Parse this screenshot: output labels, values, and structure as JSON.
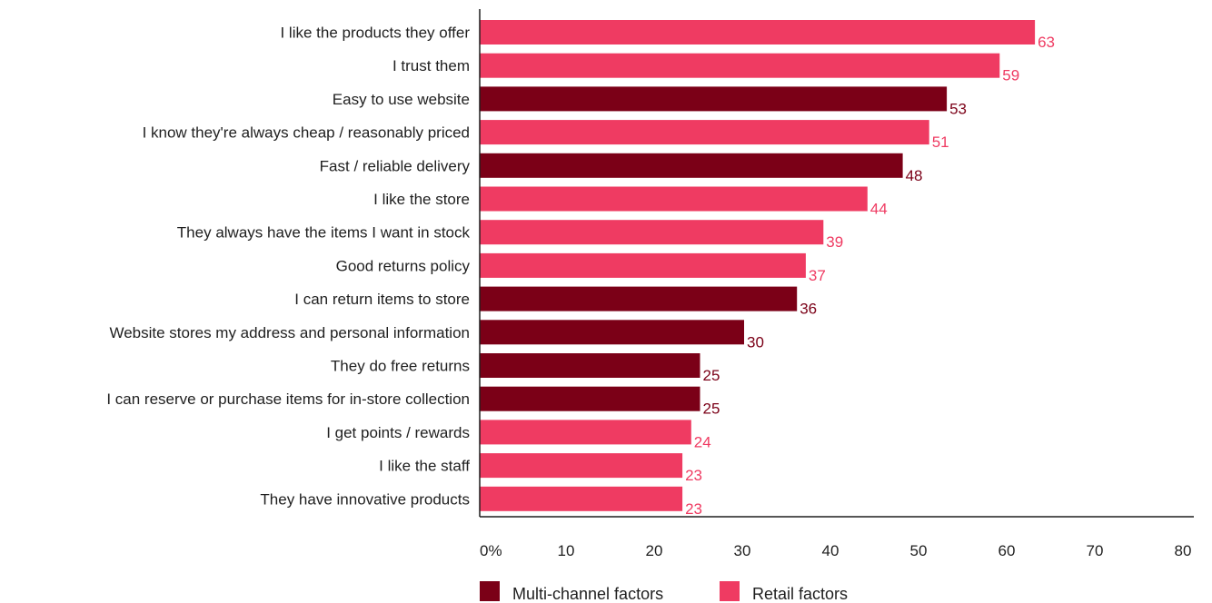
{
  "chart_data": {
    "type": "bar",
    "orientation": "horizontal",
    "categories": [
      "I like the products they offer",
      "I trust them",
      "Easy to use website",
      "I know they're always cheap / reasonably priced",
      "Fast / reliable delivery",
      "I like the store",
      "They always have the items I want in stock",
      "Good returns policy",
      "I can return items to store",
      "Website stores my address and personal information",
      "They do free returns",
      "I can reserve or purchase items for in-store collection",
      "I get points / rewards",
      "I like the staff",
      "They have innovative products"
    ],
    "values": [
      63,
      59,
      53,
      51,
      48,
      44,
      39,
      37,
      36,
      30,
      25,
      25,
      24,
      23,
      23
    ],
    "value_labels": [
      "63",
      "59",
      "53",
      "51",
      "48",
      "44",
      "39",
      "37",
      "36",
      "30",
      "25",
      "25",
      "24",
      "23",
      "23"
    ],
    "groups": [
      "retail",
      "retail",
      "multi",
      "retail",
      "multi",
      "retail",
      "retail",
      "retail",
      "multi",
      "multi",
      "multi",
      "multi",
      "retail",
      "retail",
      "retail"
    ],
    "legend": [
      {
        "key": "multi",
        "name": "Multi-channel factors",
        "color": "#7b0017"
      },
      {
        "key": "retail",
        "name": "Retail factors",
        "color": "#ef3b62"
      }
    ],
    "x_ticks": [
      "0%",
      "10",
      "20",
      "30",
      "40",
      "50",
      "60",
      "70",
      "80"
    ],
    "xlim": [
      0,
      80
    ],
    "title": "",
    "xlabel": "",
    "ylabel": "",
    "grid": false,
    "legend_position": "bottom"
  }
}
